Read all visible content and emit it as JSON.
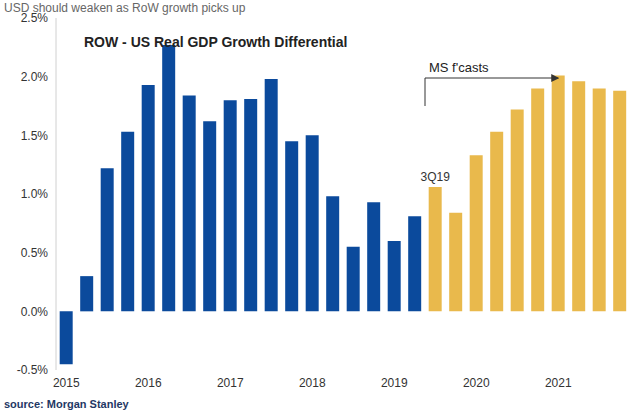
{
  "chart_data": {
    "type": "bar",
    "title": "ROW - US Real GDP Growth Differential",
    "subtitle": "USD should weaken as RoW growth picks up",
    "source": "source: Morgan Stanley",
    "annotations": [
      "3Q19",
      "MS f'casts"
    ],
    "categories": [
      "2015",
      null,
      null,
      null,
      "2016",
      null,
      null,
      null,
      "2017",
      null,
      null,
      null,
      "2018",
      null,
      null,
      null,
      "2019",
      null,
      null,
      null,
      "2020",
      null,
      null,
      null,
      "2021",
      null,
      null,
      null
    ],
    "values": [
      -0.45,
      0.3,
      1.22,
      1.53,
      1.93,
      2.27,
      1.84,
      1.62,
      1.8,
      1.81,
      1.98,
      1.45,
      1.5,
      0.98,
      0.55,
      0.93,
      0.6,
      0.81,
      1.06,
      0.84,
      1.33,
      1.53,
      1.72,
      1.9,
      2.01,
      1.96,
      1.9,
      1.88
    ],
    "colors": [
      "#0b4a9c",
      "#0b4a9c",
      "#0b4a9c",
      "#0b4a9c",
      "#0b4a9c",
      "#0b4a9c",
      "#0b4a9c",
      "#0b4a9c",
      "#0b4a9c",
      "#0b4a9c",
      "#0b4a9c",
      "#0b4a9c",
      "#0b4a9c",
      "#0b4a9c",
      "#0b4a9c",
      "#0b4a9c",
      "#0b4a9c",
      "#0b4a9c",
      "#e9b94c",
      "#e9b94c",
      "#e9b94c",
      "#e9b94c",
      "#e9b94c",
      "#e9b94c",
      "#e9b94c",
      "#e9b94c",
      "#e9b94c",
      "#e9b94c"
    ],
    "ylim": [
      -0.5,
      2.5
    ],
    "yticks": [
      {
        "value": -0.5,
        "label": "-0.5%"
      },
      {
        "value": 0,
        "label": "0.0%"
      },
      {
        "value": 0.5,
        "label": "0.5%"
      },
      {
        "value": 1,
        "label": "1.0%"
      },
      {
        "value": 1.5,
        "label": "1.5%"
      },
      {
        "value": 2,
        "label": "2.0%"
      },
      {
        "value": 2.5,
        "label": "2.5%"
      }
    ],
    "grid": false
  }
}
